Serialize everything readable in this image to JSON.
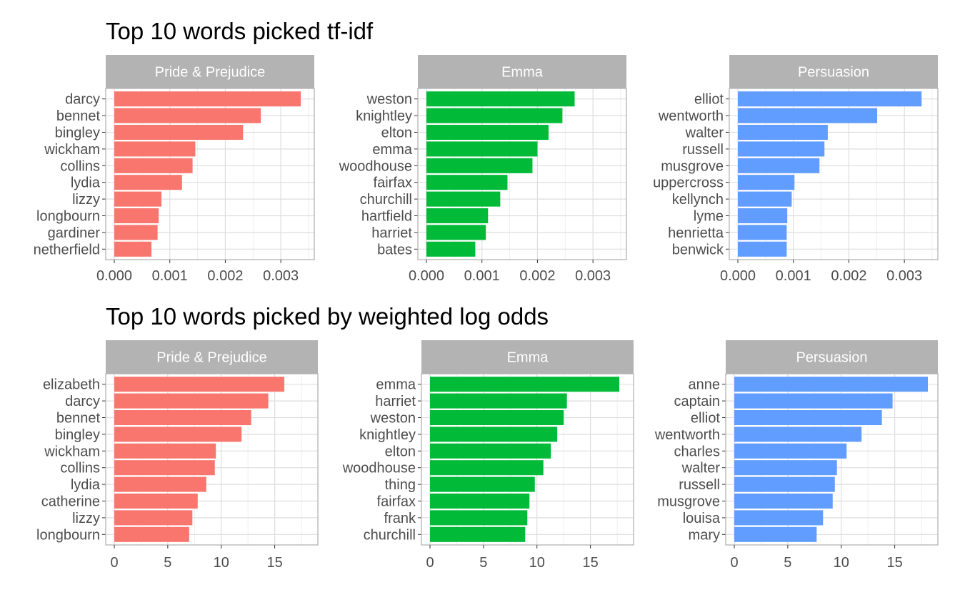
{
  "chart_data": [
    {
      "type": "bar",
      "orientation": "horizontal",
      "title": "Top 10 words picked tf-idf",
      "xlim": [
        0,
        0.0035
      ],
      "x_ticks": [
        0,
        0.001,
        0.002,
        0.003
      ],
      "x_tick_labels": [
        "0.000",
        "0.001",
        "0.002",
        "0.003"
      ],
      "grid": true,
      "panels": [
        {
          "name": "Pride & Prejudice",
          "color": "#F8766D",
          "categories": [
            "darcy",
            "bennet",
            "bingley",
            "wickham",
            "collins",
            "lydia",
            "lizzy",
            "longbourn",
            "gardiner",
            "netherfield"
          ],
          "values": [
            0.00336,
            0.00264,
            0.00232,
            0.00146,
            0.00141,
            0.00122,
            0.00085,
            0.0008,
            0.00078,
            0.00067
          ]
        },
        {
          "name": "Emma",
          "color": "#00BA38",
          "categories": [
            "weston",
            "knightley",
            "elton",
            "emma",
            "woodhouse",
            "fairfax",
            "churchill",
            "hartfield",
            "harriet",
            "bates"
          ],
          "values": [
            0.00267,
            0.00245,
            0.0022,
            0.002,
            0.00191,
            0.00146,
            0.00133,
            0.00111,
            0.00107,
            0.00088
          ]
        },
        {
          "name": "Persuasion",
          "color": "#619CFF",
          "categories": [
            "elliot",
            "wentworth",
            "walter",
            "russell",
            "musgrove",
            "uppercross",
            "kellynch",
            "lyme",
            "henrietta",
            "benwick"
          ],
          "values": [
            0.00331,
            0.00251,
            0.00162,
            0.00156,
            0.00147,
            0.00102,
            0.00097,
            0.00089,
            0.00088,
            0.00088
          ]
        }
      ]
    },
    {
      "type": "bar",
      "orientation": "horizontal",
      "title": "Top 10 words picked by weighted log odds",
      "xlim": [
        0,
        18.5
      ],
      "x_ticks": [
        0,
        5,
        10,
        15
      ],
      "x_tick_labels": [
        "0",
        "5",
        "10",
        "15"
      ],
      "grid": true,
      "panels": [
        {
          "name": "Pride & Prejudice",
          "color": "#F8766D",
          "categories": [
            "elizabeth",
            "darcy",
            "bennet",
            "bingley",
            "wickham",
            "collins",
            "lydia",
            "catherine",
            "lizzy",
            "longbourn"
          ],
          "values": [
            15.9,
            14.4,
            12.8,
            11.9,
            9.5,
            9.4,
            8.6,
            7.8,
            7.3,
            7.0
          ]
        },
        {
          "name": "Emma",
          "color": "#00BA38",
          "categories": [
            "emma",
            "harriet",
            "weston",
            "knightley",
            "elton",
            "woodhouse",
            "thing",
            "fairfax",
            "frank",
            "churchill"
          ],
          "values": [
            17.7,
            12.8,
            12.5,
            11.9,
            11.3,
            10.6,
            9.8,
            9.3,
            9.1,
            8.9
          ]
        },
        {
          "name": "Persuasion",
          "color": "#619CFF",
          "categories": [
            "anne",
            "captain",
            "elliot",
            "wentworth",
            "charles",
            "walter",
            "russell",
            "musgrove",
            "louisa",
            "mary"
          ],
          "values": [
            18.1,
            14.8,
            13.8,
            11.9,
            10.5,
            9.6,
            9.4,
            9.2,
            8.3,
            7.7
          ]
        }
      ]
    }
  ]
}
